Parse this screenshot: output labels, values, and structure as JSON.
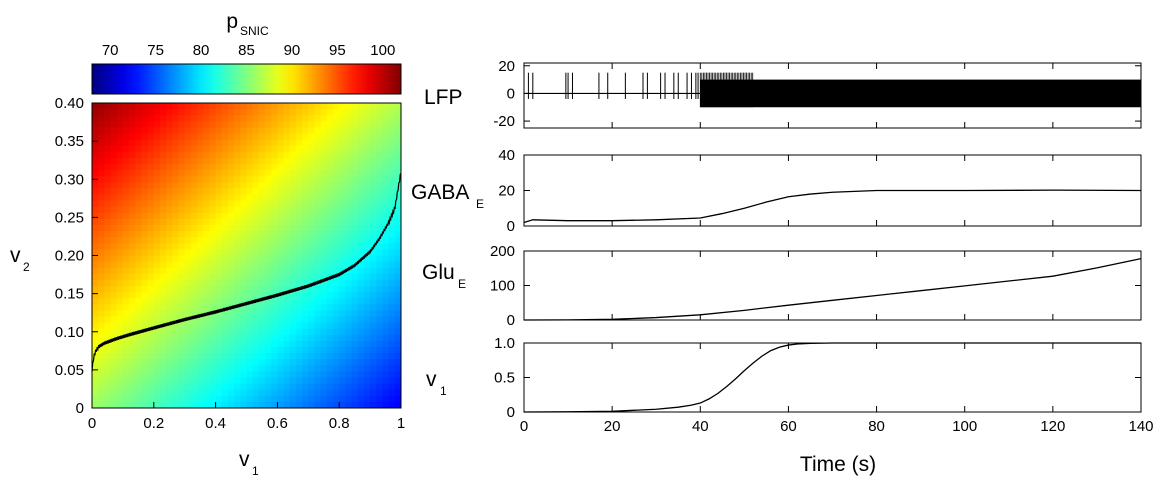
{
  "chart_data": [
    {
      "type": "heatmap",
      "title": "p",
      "title_sub": "SNIC",
      "colorbar": {
        "ticks": [
          "70",
          "75",
          "80",
          "85",
          "90",
          "95",
          "100"
        ],
        "range": [
          68,
          102
        ],
        "colormap": "jet"
      },
      "xlabel": "v",
      "xlabel_sub": "1",
      "ylabel": "v",
      "ylabel_sub": "2",
      "xlim": [
        0,
        1
      ],
      "ylim": [
        0,
        0.4
      ],
      "xticks": [
        "0",
        "0.2",
        "0.4",
        "0.6",
        "0.8",
        "1"
      ],
      "yticks": [
        "0",
        "0.05",
        "0.10",
        "0.15",
        "0.20",
        "0.25",
        "0.30",
        "0.35",
        "0.40"
      ],
      "trajectory": {
        "v1": [
          0.0,
          0.005,
          0.01,
          0.02,
          0.04,
          0.08,
          0.12,
          0.2,
          0.3,
          0.4,
          0.5,
          0.6,
          0.7,
          0.8,
          0.85,
          0.9,
          0.93,
          0.96,
          0.98,
          1.0
        ],
        "v2": [
          0.05,
          0.065,
          0.073,
          0.08,
          0.085,
          0.091,
          0.096,
          0.105,
          0.116,
          0.126,
          0.137,
          0.148,
          0.16,
          0.175,
          0.187,
          0.205,
          0.222,
          0.243,
          0.262,
          0.31
        ]
      }
    },
    {
      "type": "line",
      "ylabel": "LFP",
      "yticks": [
        "20",
        "0",
        "-20"
      ],
      "ylim": [
        -25,
        22
      ],
      "xlim": [
        0,
        140
      ],
      "spike_times": [
        1,
        2,
        9.5,
        10,
        11,
        17,
        19,
        23,
        27,
        28,
        31,
        32,
        34,
        35,
        37,
        38,
        39,
        39.5
      ],
      "oscillation_onset": 40,
      "oscillation_amplitude": 10
    },
    {
      "type": "line",
      "ylabel": "GABA",
      "ylabel_sub": "E",
      "yticks": [
        "40",
        "20",
        "0"
      ],
      "ylim": [
        0,
        40
      ],
      "xlim": [
        0,
        140
      ],
      "x": [
        0,
        2,
        10,
        20,
        30,
        40,
        45,
        50,
        55,
        60,
        65,
        70,
        80,
        100,
        120,
        140
      ],
      "y": [
        2,
        3.5,
        3,
        3,
        3.5,
        4.5,
        7,
        10,
        13.5,
        16.5,
        18,
        19,
        20,
        20,
        20.2,
        20
      ]
    },
    {
      "type": "line",
      "ylabel": "Glu",
      "ylabel_sub": "E",
      "yticks": [
        "200",
        "100",
        "0"
      ],
      "ylim": [
        0,
        200
      ],
      "xlim": [
        0,
        140
      ],
      "x": [
        0,
        10,
        20,
        30,
        40,
        50,
        60,
        70,
        80,
        90,
        100,
        110,
        120,
        130,
        140
      ],
      "y": [
        0,
        0.3,
        2,
        7,
        15,
        28,
        43,
        57,
        71,
        85,
        99,
        113,
        127,
        151,
        178
      ]
    },
    {
      "type": "line",
      "ylabel": "v",
      "ylabel_sub": "1",
      "yticks": [
        "1.0",
        "0.5",
        "0"
      ],
      "ylim": [
        0,
        1
      ],
      "xlim": [
        0,
        140
      ],
      "xticks": [
        "0",
        "20",
        "40",
        "60",
        "80",
        "100",
        "120",
        "140"
      ],
      "xlabel": "Time (s)",
      "x": [
        0,
        10,
        20,
        30,
        35,
        38,
        40,
        42,
        44,
        46,
        48,
        50,
        52,
        54,
        56,
        58,
        60,
        62,
        65,
        70,
        140
      ],
      "y": [
        0,
        0.003,
        0.01,
        0.04,
        0.07,
        0.1,
        0.13,
        0.19,
        0.27,
        0.37,
        0.48,
        0.6,
        0.71,
        0.81,
        0.89,
        0.94,
        0.97,
        0.985,
        0.995,
        1,
        1
      ]
    }
  ]
}
